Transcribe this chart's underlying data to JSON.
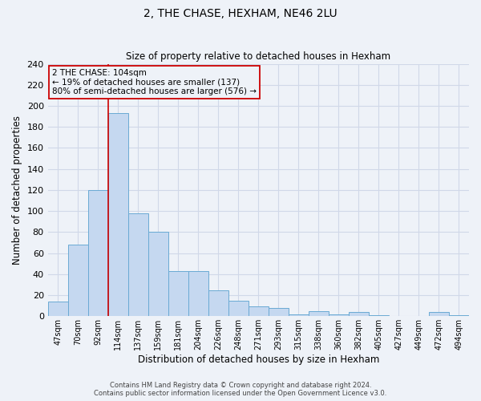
{
  "title": "2, THE CHASE, HEXHAM, NE46 2LU",
  "subtitle": "Size of property relative to detached houses in Hexham",
  "xlabel": "Distribution of detached houses by size in Hexham",
  "ylabel": "Number of detached properties",
  "bar_color": "#c5d8f0",
  "bar_edge_color": "#6aaad4",
  "background_color": "#eef2f8",
  "grid_color": "#d0d8e8",
  "categories": [
    "47sqm",
    "70sqm",
    "92sqm",
    "114sqm",
    "137sqm",
    "159sqm",
    "181sqm",
    "204sqm",
    "226sqm",
    "248sqm",
    "271sqm",
    "293sqm",
    "315sqm",
    "338sqm",
    "360sqm",
    "382sqm",
    "405sqm",
    "427sqm",
    "449sqm",
    "472sqm",
    "494sqm"
  ],
  "values": [
    14,
    68,
    120,
    193,
    98,
    80,
    43,
    43,
    25,
    15,
    9,
    8,
    2,
    5,
    2,
    4,
    1,
    0,
    0,
    4,
    1
  ],
  "vline_color": "#cc0000",
  "annotation_text": "2 THE CHASE: 104sqm\n← 19% of detached houses are smaller (137)\n80% of semi-detached houses are larger (576) →",
  "annotation_box_edgecolor": "#cc0000",
  "footer1": "Contains HM Land Registry data © Crown copyright and database right 2024.",
  "footer2": "Contains public sector information licensed under the Open Government Licence v3.0.",
  "ylim": [
    0,
    240
  ],
  "yticks": [
    0,
    20,
    40,
    60,
    80,
    100,
    120,
    140,
    160,
    180,
    200,
    220,
    240
  ]
}
